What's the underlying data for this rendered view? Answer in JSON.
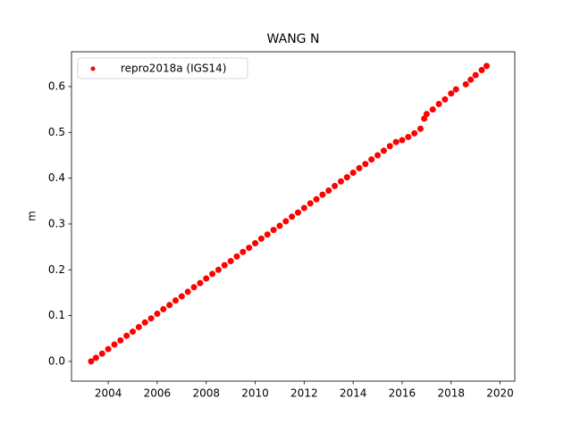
{
  "chart_data": {
    "type": "scatter",
    "title": "WANG N",
    "y_label": "m",
    "x": [
      2003.3,
      2003.5,
      2003.75,
      2004,
      2004.25,
      2004.5,
      2004.75,
      2005,
      2005.25,
      2005.5,
      2005.75,
      2006,
      2006.25,
      2006.5,
      2006.75,
      2007,
      2007.25,
      2007.5,
      2007.75,
      2008,
      2008.25,
      2008.5,
      2008.75,
      2009,
      2009.25,
      2009.5,
      2009.75,
      2010,
      2010.25,
      2010.5,
      2010.75,
      2011,
      2011.25,
      2011.5,
      2011.75,
      2012,
      2012.25,
      2012.5,
      2012.75,
      2013,
      2013.25,
      2013.5,
      2013.75,
      2014,
      2014.25,
      2014.5,
      2014.75,
      2015,
      2015.25,
      2015.5,
      2015.75,
      2016,
      2016.25,
      2016.5,
      2016.75,
      2016.9,
      2017,
      2017.25,
      2017.5,
      2017.75,
      2018,
      2018.2,
      2018.6,
      2018.8,
      2019,
      2019.25,
      2019.45
    ],
    "series": [
      {
        "name": "repro2018a (IGS14)",
        "color": "#ff0000",
        "values": [
          0.0,
          0.008,
          0.017,
          0.027,
          0.037,
          0.046,
          0.056,
          0.065,
          0.075,
          0.085,
          0.094,
          0.104,
          0.114,
          0.123,
          0.133,
          0.142,
          0.152,
          0.162,
          0.171,
          0.181,
          0.191,
          0.2,
          0.21,
          0.219,
          0.229,
          0.239,
          0.248,
          0.258,
          0.268,
          0.277,
          0.287,
          0.296,
          0.306,
          0.316,
          0.325,
          0.335,
          0.345,
          0.354,
          0.364,
          0.373,
          0.383,
          0.393,
          0.402,
          0.412,
          0.422,
          0.431,
          0.441,
          0.45,
          0.46,
          0.47,
          0.479,
          0.483,
          0.49,
          0.498,
          0.508,
          0.53,
          0.54,
          0.55,
          0.562,
          0.572,
          0.585,
          0.594,
          0.605,
          0.615,
          0.625,
          0.636,
          0.645
        ]
      }
    ],
    "xlim": [
      2002.5,
      2020.6
    ],
    "xticks": [
      2004,
      2006,
      2008,
      2010,
      2012,
      2014,
      2016,
      2018,
      2020
    ],
    "ylim": [
      -0.043,
      0.676
    ],
    "yticks": [
      {
        "value": 0,
        "label": "0.0"
      },
      0.1,
      0.2,
      0.3,
      0.4,
      0.5,
      0.6
    ],
    "legend": "upper left",
    "grid": false
  }
}
